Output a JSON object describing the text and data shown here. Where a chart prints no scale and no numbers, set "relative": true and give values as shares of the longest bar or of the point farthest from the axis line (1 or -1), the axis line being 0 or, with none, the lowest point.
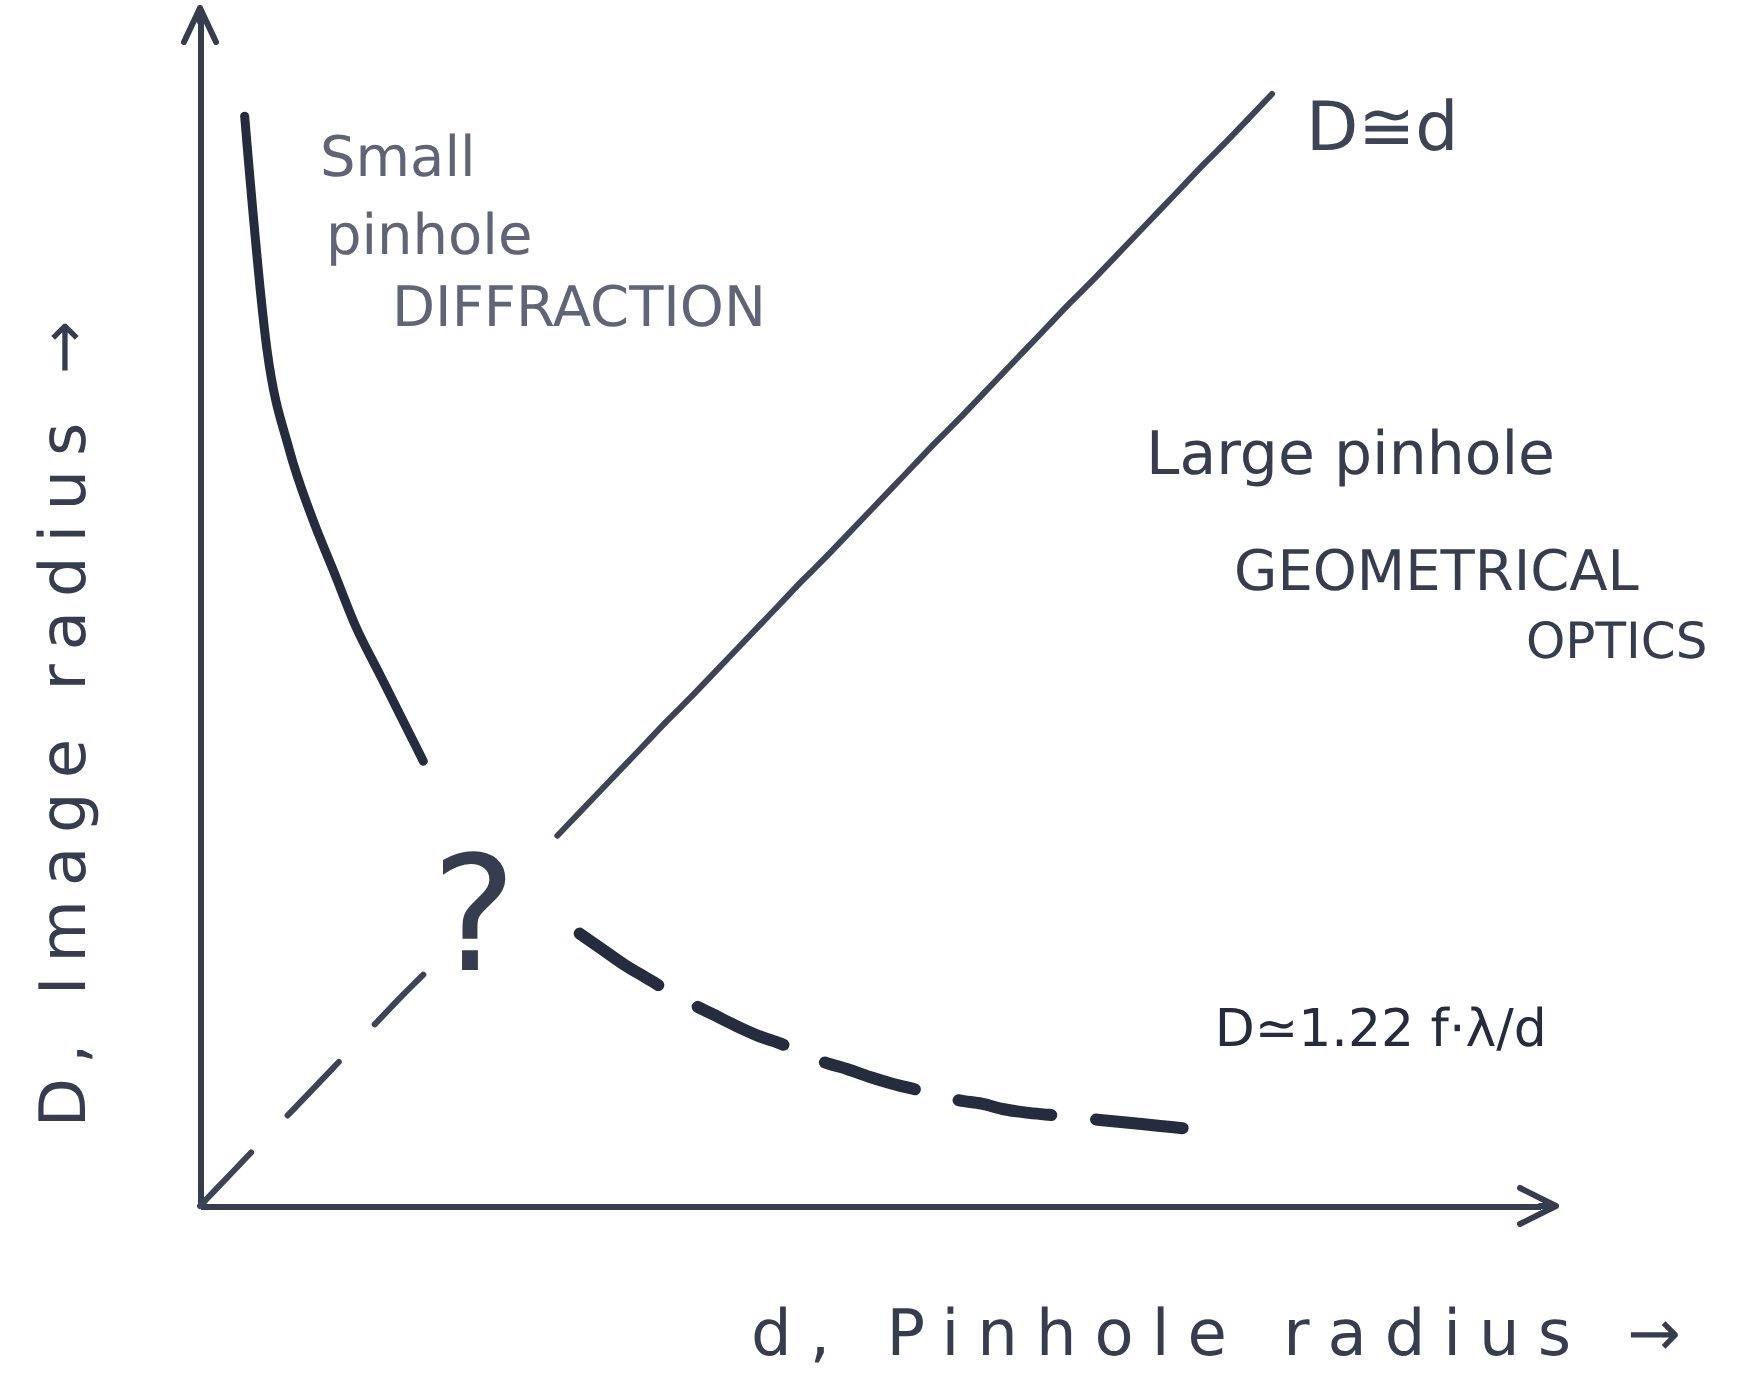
{
  "chart_data": {
    "type": "line",
    "relative": true,
    "xlabel": "d, Pinhole radius →",
    "ylabel": "D, Image radius →",
    "categories": [
      null,
      null,
      null,
      null,
      null,
      null,
      null,
      null,
      null,
      null,
      null,
      null,
      null,
      null,
      null,
      null,
      null,
      null,
      null,
      null,
      null,
      null,
      null,
      null,
      null,
      null,
      null,
      null,
      null,
      null,
      null,
      null,
      null,
      null,
      null,
      null,
      null,
      null,
      null,
      null,
      null,
      null,
      null,
      null,
      null,
      null,
      null,
      null,
      null,
      null,
      null,
      null,
      null,
      null,
      null,
      null,
      null,
      null,
      null,
      null,
      null
    ],
    "series": [
      {
        "name": "D≅d",
        "color": "#3d4455",
        "line_style": "solid",
        "values": [
          null,
          null,
          null,
          null,
          null,
          null,
          null,
          null,
          null,
          null,
          null,
          null,
          null,
          null,
          null,
          null,
          0.333,
          0.354,
          0.375,
          0.396,
          0.417,
          0.438,
          0.458,
          0.479,
          0.5,
          0.521,
          0.542,
          0.563,
          0.583,
          0.604,
          0.625,
          0.646,
          0.667,
          0.688,
          0.708,
          0.729,
          0.75,
          0.771,
          0.792,
          0.813,
          0.833,
          0.854,
          0.875,
          0.896,
          0.917,
          0.938,
          0.958,
          0.979,
          1,
          null,
          null,
          null,
          null,
          null,
          null,
          null,
          null,
          null,
          null,
          null,
          null
        ]
      },
      {
        "color": "#3d4455",
        "line_style": "dashed",
        "values": [
          0,
          0.021,
          0.042,
          0.063,
          0.083,
          0.104,
          0.125,
          0.146,
          0.167,
          0.188,
          0.208,
          null,
          null,
          null,
          null,
          null,
          null,
          null,
          null,
          null,
          null,
          null,
          null,
          null,
          null,
          null,
          null,
          null,
          null,
          null,
          null,
          null,
          null,
          null,
          null,
          null,
          null,
          null,
          null,
          null,
          null,
          null,
          null,
          null,
          null,
          null,
          null,
          null,
          null,
          null,
          null,
          null,
          null,
          null,
          null,
          null,
          null,
          null,
          null,
          null,
          null
        ]
      },
      {
        "color": "#252c3d",
        "line_style": "solid",
        "values": [
          null,
          null,
          0.98,
          0.77,
          0.68,
          0.62,
          0.57,
          0.52,
          0.48,
          0.44,
          0.4,
          null,
          null,
          null,
          null,
          null,
          null,
          null,
          null,
          null,
          null,
          null,
          null,
          null,
          null,
          null,
          null,
          null,
          null,
          null,
          null,
          null,
          null,
          null,
          null,
          null,
          null,
          null,
          null,
          null,
          null,
          null,
          null,
          null,
          null,
          null,
          null,
          null,
          null,
          null,
          null,
          null,
          null,
          null,
          null,
          null,
          null,
          null,
          null,
          null,
          null
        ]
      },
      {
        "name": "D≃1.22 f·λ/d",
        "color": "#252c3d",
        "line_style": "dashed",
        "values": [
          null,
          null,
          null,
          null,
          null,
          null,
          null,
          null,
          null,
          null,
          null,
          null,
          null,
          null,
          null,
          null,
          null,
          0.245,
          0.231,
          0.217,
          0.205,
          0.193,
          0.182,
          0.172,
          0.162,
          0.153,
          0.146,
          0.137,
          0.129,
          0.123,
          0.116,
          0.11,
          0.105,
          0.1,
          0.095,
          0.092,
          0.087,
          0.084,
          0.082,
          0.08,
          0.078,
          0.076,
          0.074,
          0.072,
          0.07,
          null,
          null,
          null,
          null,
          null,
          null,
          null,
          null,
          null,
          null,
          null,
          null,
          null,
          null,
          null,
          null
        ]
      }
    ],
    "annotations": [
      "Small\npinhole\nDIFFRACTION",
      "Large pinhole\nGEOMETRICAL\nOPTICS",
      "?"
    ]
  }
}
